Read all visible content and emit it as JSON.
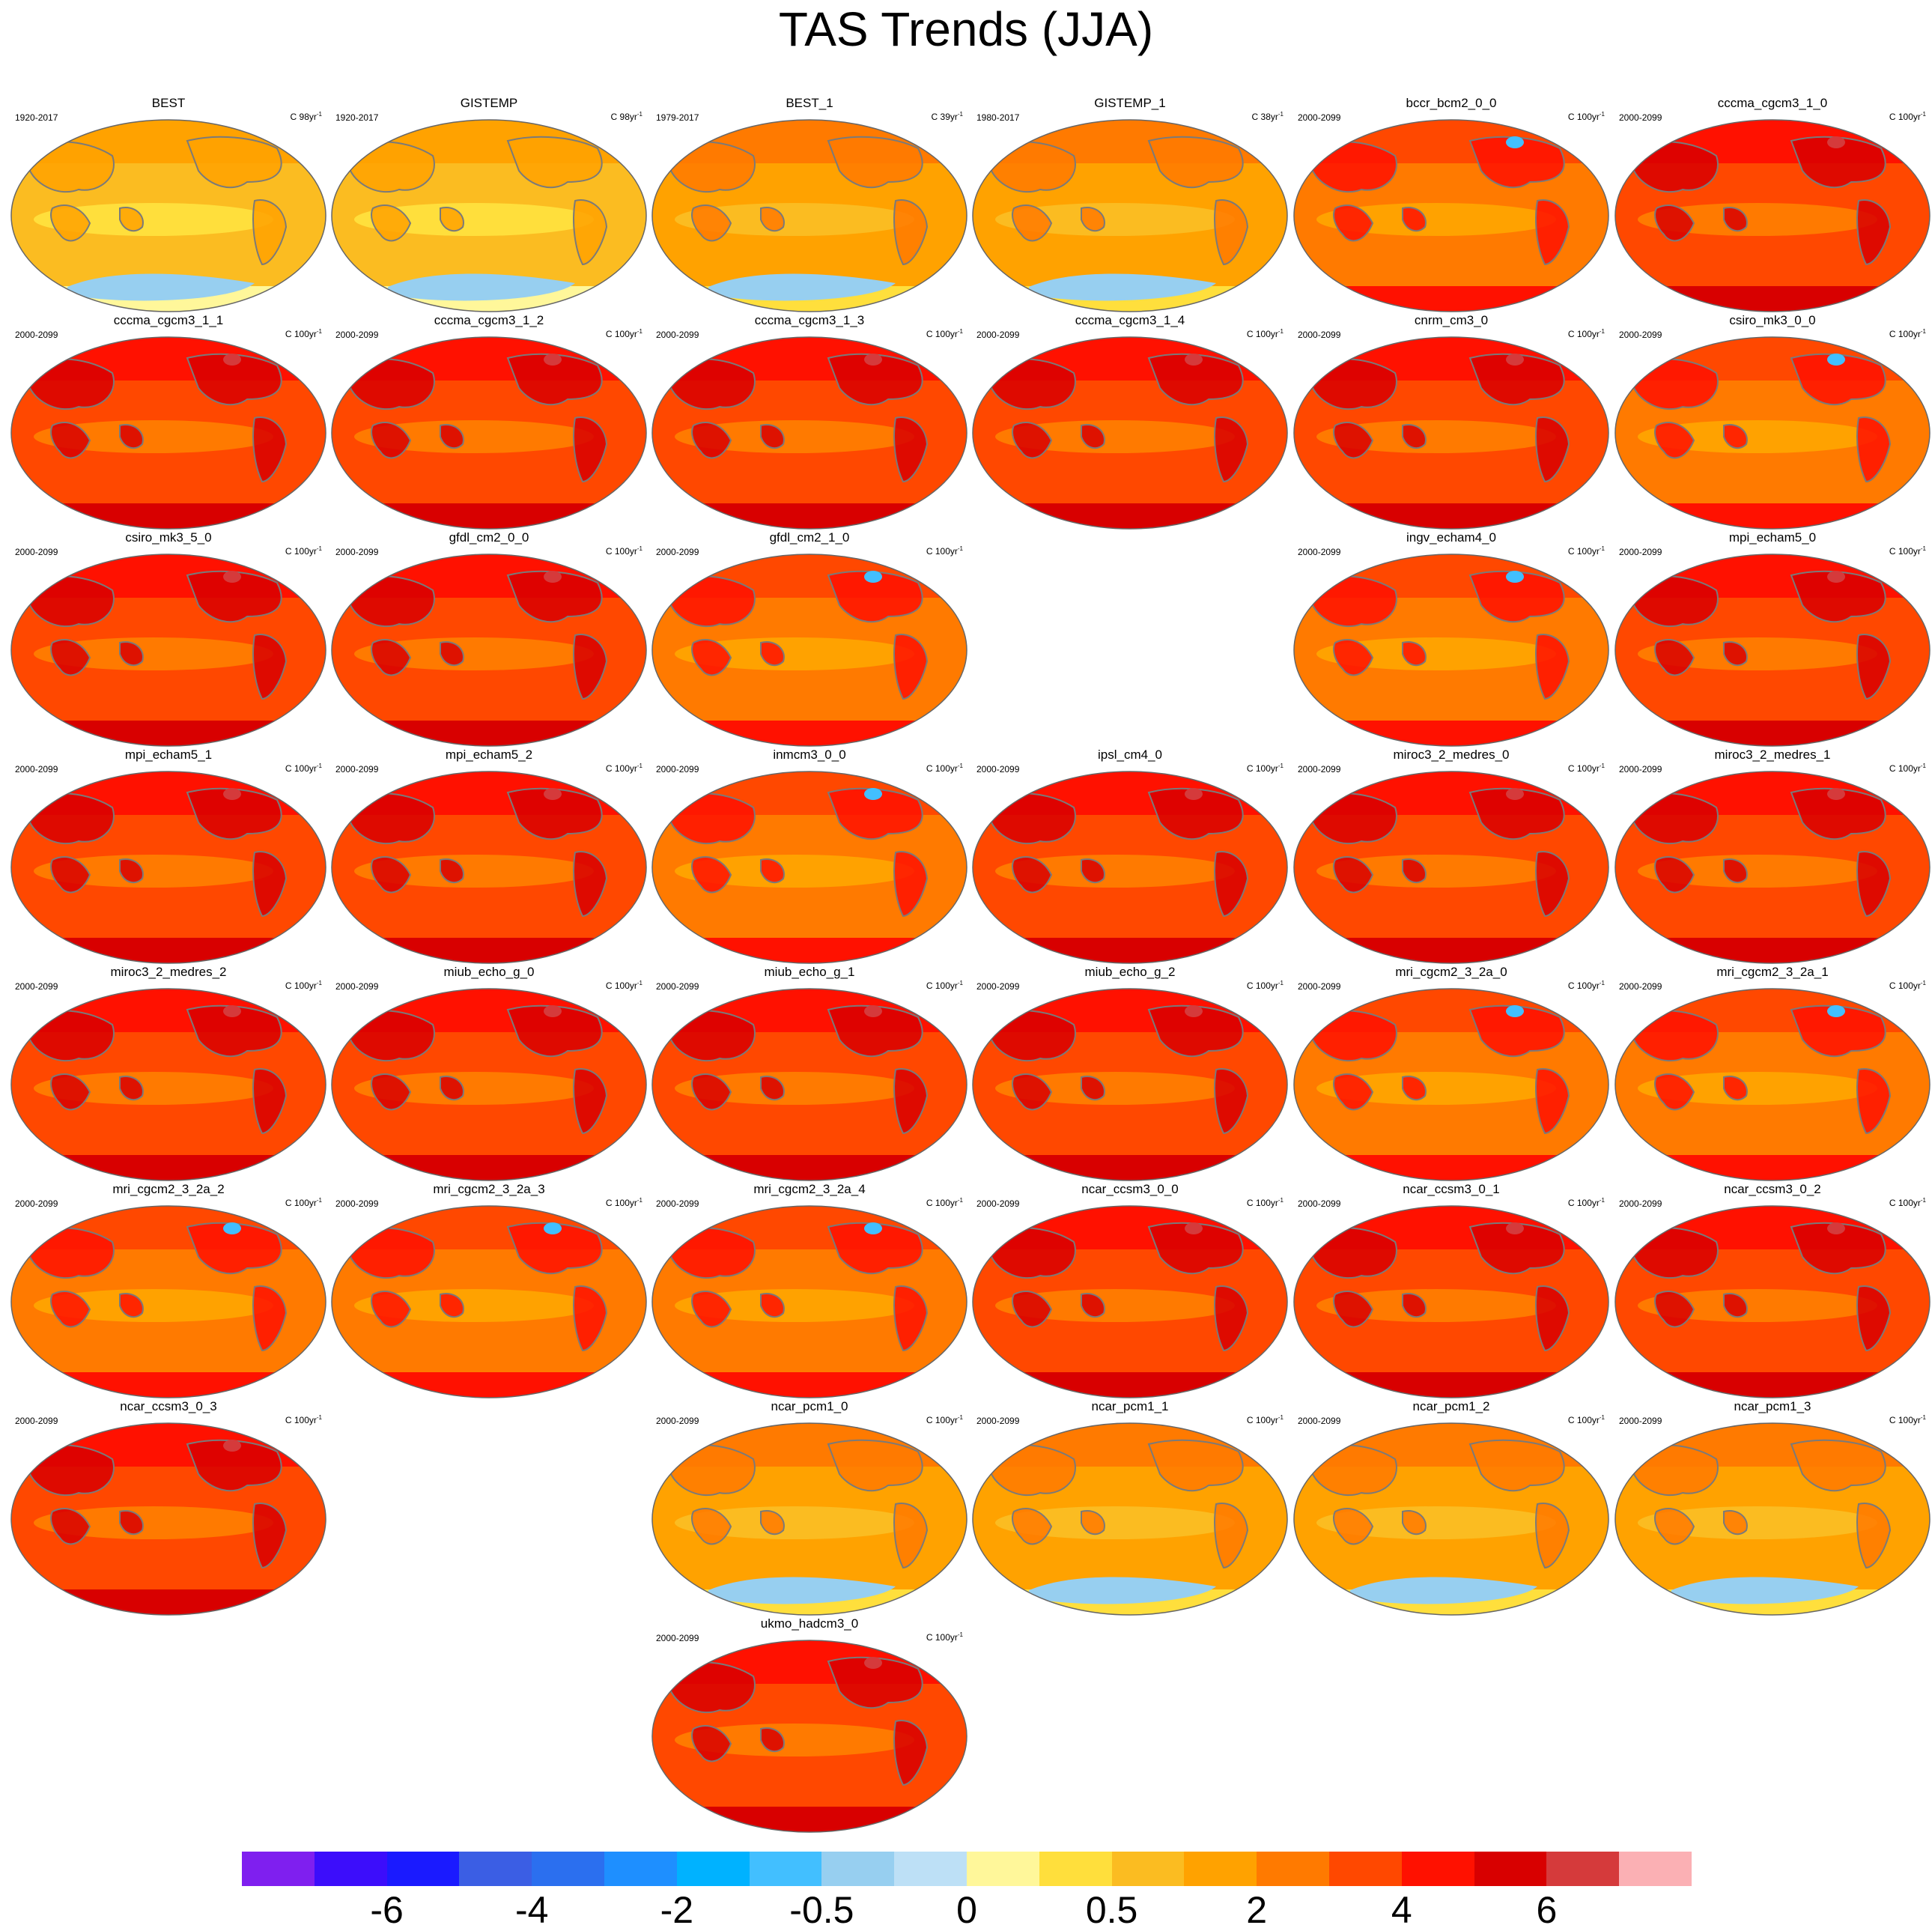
{
  "title": "TAS Trends (JJA)",
  "units_prefix": "C",
  "chart_data": {
    "type": "heatmap",
    "description_variable": "TAS Trends (JJA)",
    "colorbar": {
      "colors": [
        "#7f1fef",
        "#3c0dfb",
        "#1a1aff",
        "#3b5ee4",
        "#2b6fef",
        "#1e8fff",
        "#00b2ff",
        "#42bfff",
        "#97cff0",
        "#bde0f6",
        "#fff79a",
        "#ffdf3c",
        "#fbbc21",
        "#ffa200",
        "#ff7a00",
        "#ff4800",
        "#ff1100",
        "#d80000",
        "#d53a3b",
        "#fbb0b4"
      ],
      "tick_labels": [
        "-6",
        "-4",
        "-2",
        "-0.5",
        "0",
        "0.5",
        "2",
        "4",
        "6"
      ],
      "tick_boundaries": [
        2,
        4,
        6,
        8,
        10,
        12,
        14,
        16,
        18
      ]
    },
    "panels": [
      {
        "name": "BEST",
        "period": "1920-2017",
        "units": "98yr",
        "row": 0,
        "col": 0,
        "level": 0
      },
      {
        "name": "GISTEMP",
        "period": "1920-2017",
        "units": "98yr",
        "row": 0,
        "col": 1,
        "level": 0
      },
      {
        "name": "BEST_1",
        "period": "1979-2017",
        "units": "39yr",
        "row": 0,
        "col": 2,
        "level": 1
      },
      {
        "name": "GISTEMP_1",
        "period": "1980-2017",
        "units": "38yr",
        "row": 0,
        "col": 3,
        "level": 1
      },
      {
        "name": "bccr_bcm2_0_0",
        "period": "2000-2099",
        "units": "100yr",
        "row": 0,
        "col": 4,
        "level": 2
      },
      {
        "name": "cccma_cgcm3_1_0",
        "period": "2000-2099",
        "units": "100yr",
        "row": 0,
        "col": 5,
        "level": 3
      },
      {
        "name": "cccma_cgcm3_1_1",
        "period": "2000-2099",
        "units": "100yr",
        "row": 1,
        "col": 0,
        "level": 3
      },
      {
        "name": "cccma_cgcm3_1_2",
        "period": "2000-2099",
        "units": "100yr",
        "row": 1,
        "col": 1,
        "level": 3
      },
      {
        "name": "cccma_cgcm3_1_3",
        "period": "2000-2099",
        "units": "100yr",
        "row": 1,
        "col": 2,
        "level": 3
      },
      {
        "name": "cccma_cgcm3_1_4",
        "period": "2000-2099",
        "units": "100yr",
        "row": 1,
        "col": 3,
        "level": 3
      },
      {
        "name": "cnrm_cm3_0",
        "period": "2000-2099",
        "units": "100yr",
        "row": 1,
        "col": 4,
        "level": 3
      },
      {
        "name": "csiro_mk3_0_0",
        "period": "2000-2099",
        "units": "100yr",
        "row": 1,
        "col": 5,
        "level": 2
      },
      {
        "name": "csiro_mk3_5_0",
        "period": "2000-2099",
        "units": "100yr",
        "row": 2,
        "col": 0,
        "level": 3
      },
      {
        "name": "gfdl_cm2_0_0",
        "period": "2000-2099",
        "units": "100yr",
        "row": 2,
        "col": 1,
        "level": 3
      },
      {
        "name": "gfdl_cm2_1_0",
        "period": "2000-2099",
        "units": "100yr",
        "row": 2,
        "col": 2,
        "level": 2
      },
      {
        "name": "ingv_echam4_0",
        "period": "2000-2099",
        "units": "100yr",
        "row": 2,
        "col": 4,
        "level": 2
      },
      {
        "name": "mpi_echam5_0",
        "period": "2000-2099",
        "units": "100yr",
        "row": 2,
        "col": 5,
        "level": 3
      },
      {
        "name": "mpi_echam5_1",
        "period": "2000-2099",
        "units": "100yr",
        "row": 3,
        "col": 0,
        "level": 3
      },
      {
        "name": "mpi_echam5_2",
        "period": "2000-2099",
        "units": "100yr",
        "row": 3,
        "col": 1,
        "level": 3
      },
      {
        "name": "inmcm3_0_0",
        "period": "2000-2099",
        "units": "100yr",
        "row": 3,
        "col": 2,
        "level": 2
      },
      {
        "name": "ipsl_cm4_0",
        "period": "2000-2099",
        "units": "100yr",
        "row": 3,
        "col": 3,
        "level": 3
      },
      {
        "name": "miroc3_2_medres_0",
        "period": "2000-2099",
        "units": "100yr",
        "row": 3,
        "col": 4,
        "level": 3
      },
      {
        "name": "miroc3_2_medres_1",
        "period": "2000-2099",
        "units": "100yr",
        "row": 3,
        "col": 5,
        "level": 3
      },
      {
        "name": "miroc3_2_medres_2",
        "period": "2000-2099",
        "units": "100yr",
        "row": 4,
        "col": 0,
        "level": 3
      },
      {
        "name": "miub_echo_g_0",
        "period": "2000-2099",
        "units": "100yr",
        "row": 4,
        "col": 1,
        "level": 3
      },
      {
        "name": "miub_echo_g_1",
        "period": "2000-2099",
        "units": "100yr",
        "row": 4,
        "col": 2,
        "level": 3
      },
      {
        "name": "miub_echo_g_2",
        "period": "2000-2099",
        "units": "100yr",
        "row": 4,
        "col": 3,
        "level": 3
      },
      {
        "name": "mri_cgcm2_3_2a_0",
        "period": "2000-2099",
        "units": "100yr",
        "row": 4,
        "col": 4,
        "level": 2
      },
      {
        "name": "mri_cgcm2_3_2a_1",
        "period": "2000-2099",
        "units": "100yr",
        "row": 4,
        "col": 5,
        "level": 2
      },
      {
        "name": "mri_cgcm2_3_2a_2",
        "period": "2000-2099",
        "units": "100yr",
        "row": 5,
        "col": 0,
        "level": 2
      },
      {
        "name": "mri_cgcm2_3_2a_3",
        "period": "2000-2099",
        "units": "100yr",
        "row": 5,
        "col": 1,
        "level": 2
      },
      {
        "name": "mri_cgcm2_3_2a_4",
        "period": "2000-2099",
        "units": "100yr",
        "row": 5,
        "col": 2,
        "level": 2
      },
      {
        "name": "ncar_ccsm3_0_0",
        "period": "2000-2099",
        "units": "100yr",
        "row": 5,
        "col": 3,
        "level": 3
      },
      {
        "name": "ncar_ccsm3_0_1",
        "period": "2000-2099",
        "units": "100yr",
        "row": 5,
        "col": 4,
        "level": 3
      },
      {
        "name": "ncar_ccsm3_0_2",
        "period": "2000-2099",
        "units": "100yr",
        "row": 5,
        "col": 5,
        "level": 3
      },
      {
        "name": "ncar_ccsm3_0_3",
        "period": "2000-2099",
        "units": "100yr",
        "row": 6,
        "col": 0,
        "level": 3
      },
      {
        "name": "ncar_pcm1_0",
        "period": "2000-2099",
        "units": "100yr",
        "row": 6,
        "col": 2,
        "level": 1
      },
      {
        "name": "ncar_pcm1_1",
        "period": "2000-2099",
        "units": "100yr",
        "row": 6,
        "col": 3,
        "level": 1
      },
      {
        "name": "ncar_pcm1_2",
        "period": "2000-2099",
        "units": "100yr",
        "row": 6,
        "col": 4,
        "level": 1
      },
      {
        "name": "ncar_pcm1_3",
        "period": "2000-2099",
        "units": "100yr",
        "row": 6,
        "col": 5,
        "level": 1
      },
      {
        "name": "ukmo_hadcm3_0",
        "period": "2000-2099",
        "units": "100yr",
        "row": 7,
        "col": 2,
        "level": 3
      }
    ]
  }
}
